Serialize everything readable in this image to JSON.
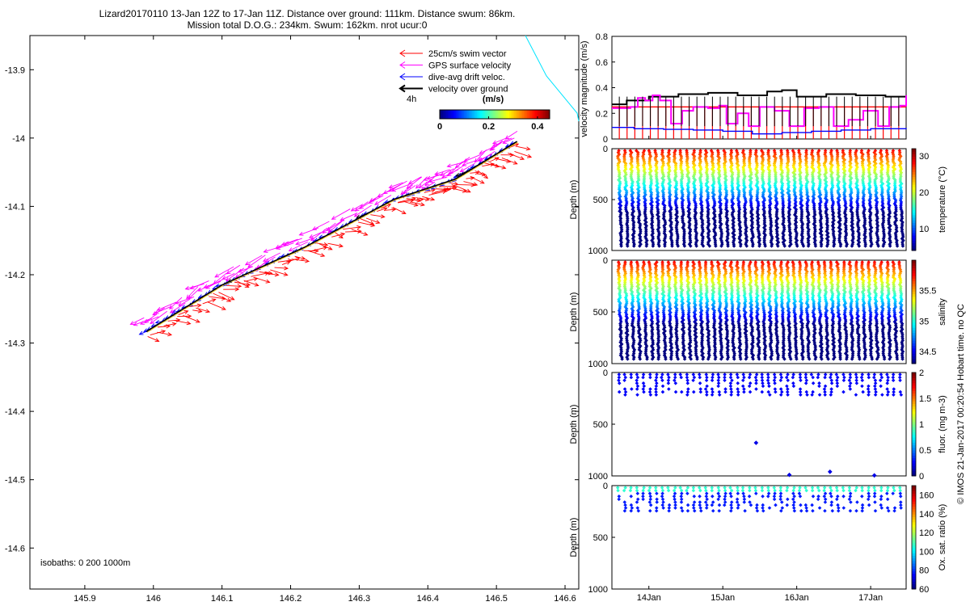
{
  "title_line1": "Lizard20170110 13-Jan 12Z to 17-Jan 11Z. Distance over ground: 111km. Distance swum: 86km.",
  "title_line2": "Mission total D.O.G.: 234km. Swum: 162km. nrot ucur:0",
  "credit": "© IMOS 21-Jan-2017 00:20:54 Hobart time. no QC",
  "colors": {
    "swim": "#ff0000",
    "gps": "#ff00ff",
    "drift": "#0000ff",
    "ground": "#000000",
    "cyan": "#00e5ff"
  },
  "chart_data": [
    {
      "type": "scatter",
      "name": "track-map",
      "xlim": [
        145.82,
        146.62
      ],
      "ylim": [
        -14.66,
        -13.85
      ],
      "xticks": [
        "145.9",
        "146",
        "146.1",
        "146.2",
        "146.3",
        "146.4",
        "146.5",
        "146.6"
      ],
      "xtick_values": [
        145.9,
        146.0,
        146.1,
        146.2,
        146.3,
        146.4,
        146.5,
        146.6
      ],
      "yticks": [
        "-13.9",
        "-14",
        "-14.1",
        "-14.2",
        "-14.3",
        "-14.4",
        "-14.5",
        "-14.6"
      ],
      "ytick_values": [
        -13.9,
        -14.0,
        -14.1,
        -14.2,
        -14.3,
        -14.4,
        -14.5,
        -14.6
      ],
      "track": {
        "x": [
          145.99,
          146.1,
          146.22,
          146.35,
          146.44,
          146.53
        ],
        "y": [
          -14.283,
          -14.215,
          -14.16,
          -14.09,
          -14.06,
          -14.005
        ]
      },
      "legend": [
        "25cm/s swim vector",
        "GPS surface velocity",
        "dive-avg drift veloc.",
        "velocity over ground"
      ],
      "legend_scale": "4h",
      "colorbar": {
        "label": "(m/s)",
        "ticks": [
          "0",
          "0.2",
          "0.4"
        ],
        "tick_values": [
          0,
          0.2,
          0.4
        ],
        "range": [
          0,
          0.45
        ]
      },
      "isobaths": "isobaths: 0   200  1000m"
    },
    {
      "type": "line",
      "name": "velocity-magnitude",
      "ylabel": "velocity magnitude (m/s)",
      "ylim": [
        0,
        0.8
      ],
      "yticks": [
        "0",
        "0.2",
        "0.4",
        "0.6",
        "0.8"
      ],
      "ytick_values": [
        0,
        0.2,
        0.4,
        0.6,
        0.8
      ],
      "xlim": [
        13.5,
        17.48
      ],
      "series": [
        {
          "name": "velocity over ground",
          "color": "#000000",
          "x": [
            13.5,
            13.7,
            14.0,
            14.4,
            14.8,
            15.2,
            15.6,
            15.8,
            16.0,
            16.4,
            16.8,
            17.2,
            17.48
          ],
          "y": [
            0.27,
            0.3,
            0.33,
            0.35,
            0.36,
            0.34,
            0.37,
            0.38,
            0.33,
            0.35,
            0.34,
            0.33,
            0.33
          ]
        },
        {
          "name": "GPS surface velocity",
          "color": "#ff00ff",
          "x": [
            13.5,
            13.75,
            13.85,
            13.95,
            14.05,
            14.15,
            14.3,
            14.45,
            14.6,
            14.8,
            14.95,
            15.05,
            15.2,
            15.35,
            15.5,
            15.7,
            15.9,
            16.1,
            16.3,
            16.5,
            16.7,
            16.9,
            17.1,
            17.25,
            17.4,
            17.48
          ],
          "y": [
            0.24,
            0.25,
            0.32,
            0.3,
            0.34,
            0.3,
            0.12,
            0.22,
            0.25,
            0.24,
            0.26,
            0.12,
            0.2,
            0.1,
            0.25,
            0.22,
            0.1,
            0.24,
            0.25,
            0.1,
            0.15,
            0.22,
            0.1,
            0.25,
            0.26,
            0.34
          ]
        },
        {
          "name": "dive-avg drift veloc.",
          "color": "#0000ff",
          "x": [
            13.5,
            13.8,
            14.2,
            14.6,
            15.0,
            15.4,
            15.8,
            16.2,
            16.6,
            17.0,
            17.48
          ],
          "y": [
            0.09,
            0.08,
            0.075,
            0.07,
            0.06,
            0.04,
            0.05,
            0.06,
            0.07,
            0.08,
            0.085
          ]
        },
        {
          "name": "25cm/s swim vector",
          "color": "#ff0000",
          "x": [
            13.5,
            17.48
          ],
          "y": [
            0.25,
            0.25
          ]
        }
      ]
    },
    {
      "type": "scatter",
      "name": "temperature-section",
      "ylabel": "Depth (m)",
      "yticks": [
        "0",
        "500",
        "1000"
      ],
      "ytick_values": [
        0,
        500,
        1000
      ],
      "ylim": [
        1000,
        0
      ],
      "profile_depth": [
        20,
        960
      ],
      "profiles": 46,
      "colorbar": {
        "label": "temperature (°C)",
        "ticks": [
          "10",
          "20",
          "30"
        ],
        "tick_values": [
          10,
          20,
          30
        ],
        "range": [
          4,
          32
        ]
      }
    },
    {
      "type": "scatter",
      "name": "salinity-section",
      "ylabel": "Depth (m)",
      "yticks": [
        "0",
        "500",
        "1000"
      ],
      "ytick_values": [
        0,
        500,
        1000
      ],
      "ylim": [
        1000,
        0
      ],
      "profile_depth": [
        20,
        960
      ],
      "profiles": 46,
      "colorbar": {
        "label": "salinity",
        "ticks": [
          "34.5",
          "35",
          "35.5"
        ],
        "tick_values": [
          34.5,
          35,
          35.5
        ],
        "range": [
          34.3,
          36.0
        ]
      }
    },
    {
      "type": "scatter",
      "name": "fluorescence-section",
      "ylabel": "Depth (m)",
      "yticks": [
        "0",
        "500",
        "1000"
      ],
      "ytick_values": [
        0,
        500,
        1000
      ],
      "ylim": [
        1000,
        0
      ],
      "profile_depth": [
        20,
        230
      ],
      "profiles": 46,
      "colorbar": {
        "label": "fluor. (mg m-3)",
        "ticks": [
          "0",
          "0.5",
          "1",
          "1.5",
          "2"
        ],
        "tick_values": [
          0,
          0.5,
          1,
          1.5,
          2
        ],
        "range": [
          0,
          2
        ]
      }
    },
    {
      "type": "scatter",
      "name": "oxygen-section",
      "ylabel": "Depth (m)",
      "yticks": [
        "0",
        "500",
        "1000"
      ],
      "ytick_values": [
        0,
        500,
        1000
      ],
      "ylim": [
        1000,
        0
      ],
      "profile_depth": [
        20,
        270
      ],
      "profiles": 46,
      "colorbar": {
        "label": "Ox. sat. ratio (%)",
        "ticks": [
          "60",
          "80",
          "100",
          "120",
          "140",
          "160"
        ],
        "tick_values": [
          60,
          80,
          100,
          120,
          140,
          160
        ],
        "range": [
          60,
          170
        ]
      },
      "xticks": [
        "14Jan",
        "15Jan",
        "16Jan",
        "17Jan"
      ],
      "xtick_values": [
        14,
        15,
        16,
        17
      ],
      "xlim": [
        13.5,
        17.48
      ]
    }
  ]
}
